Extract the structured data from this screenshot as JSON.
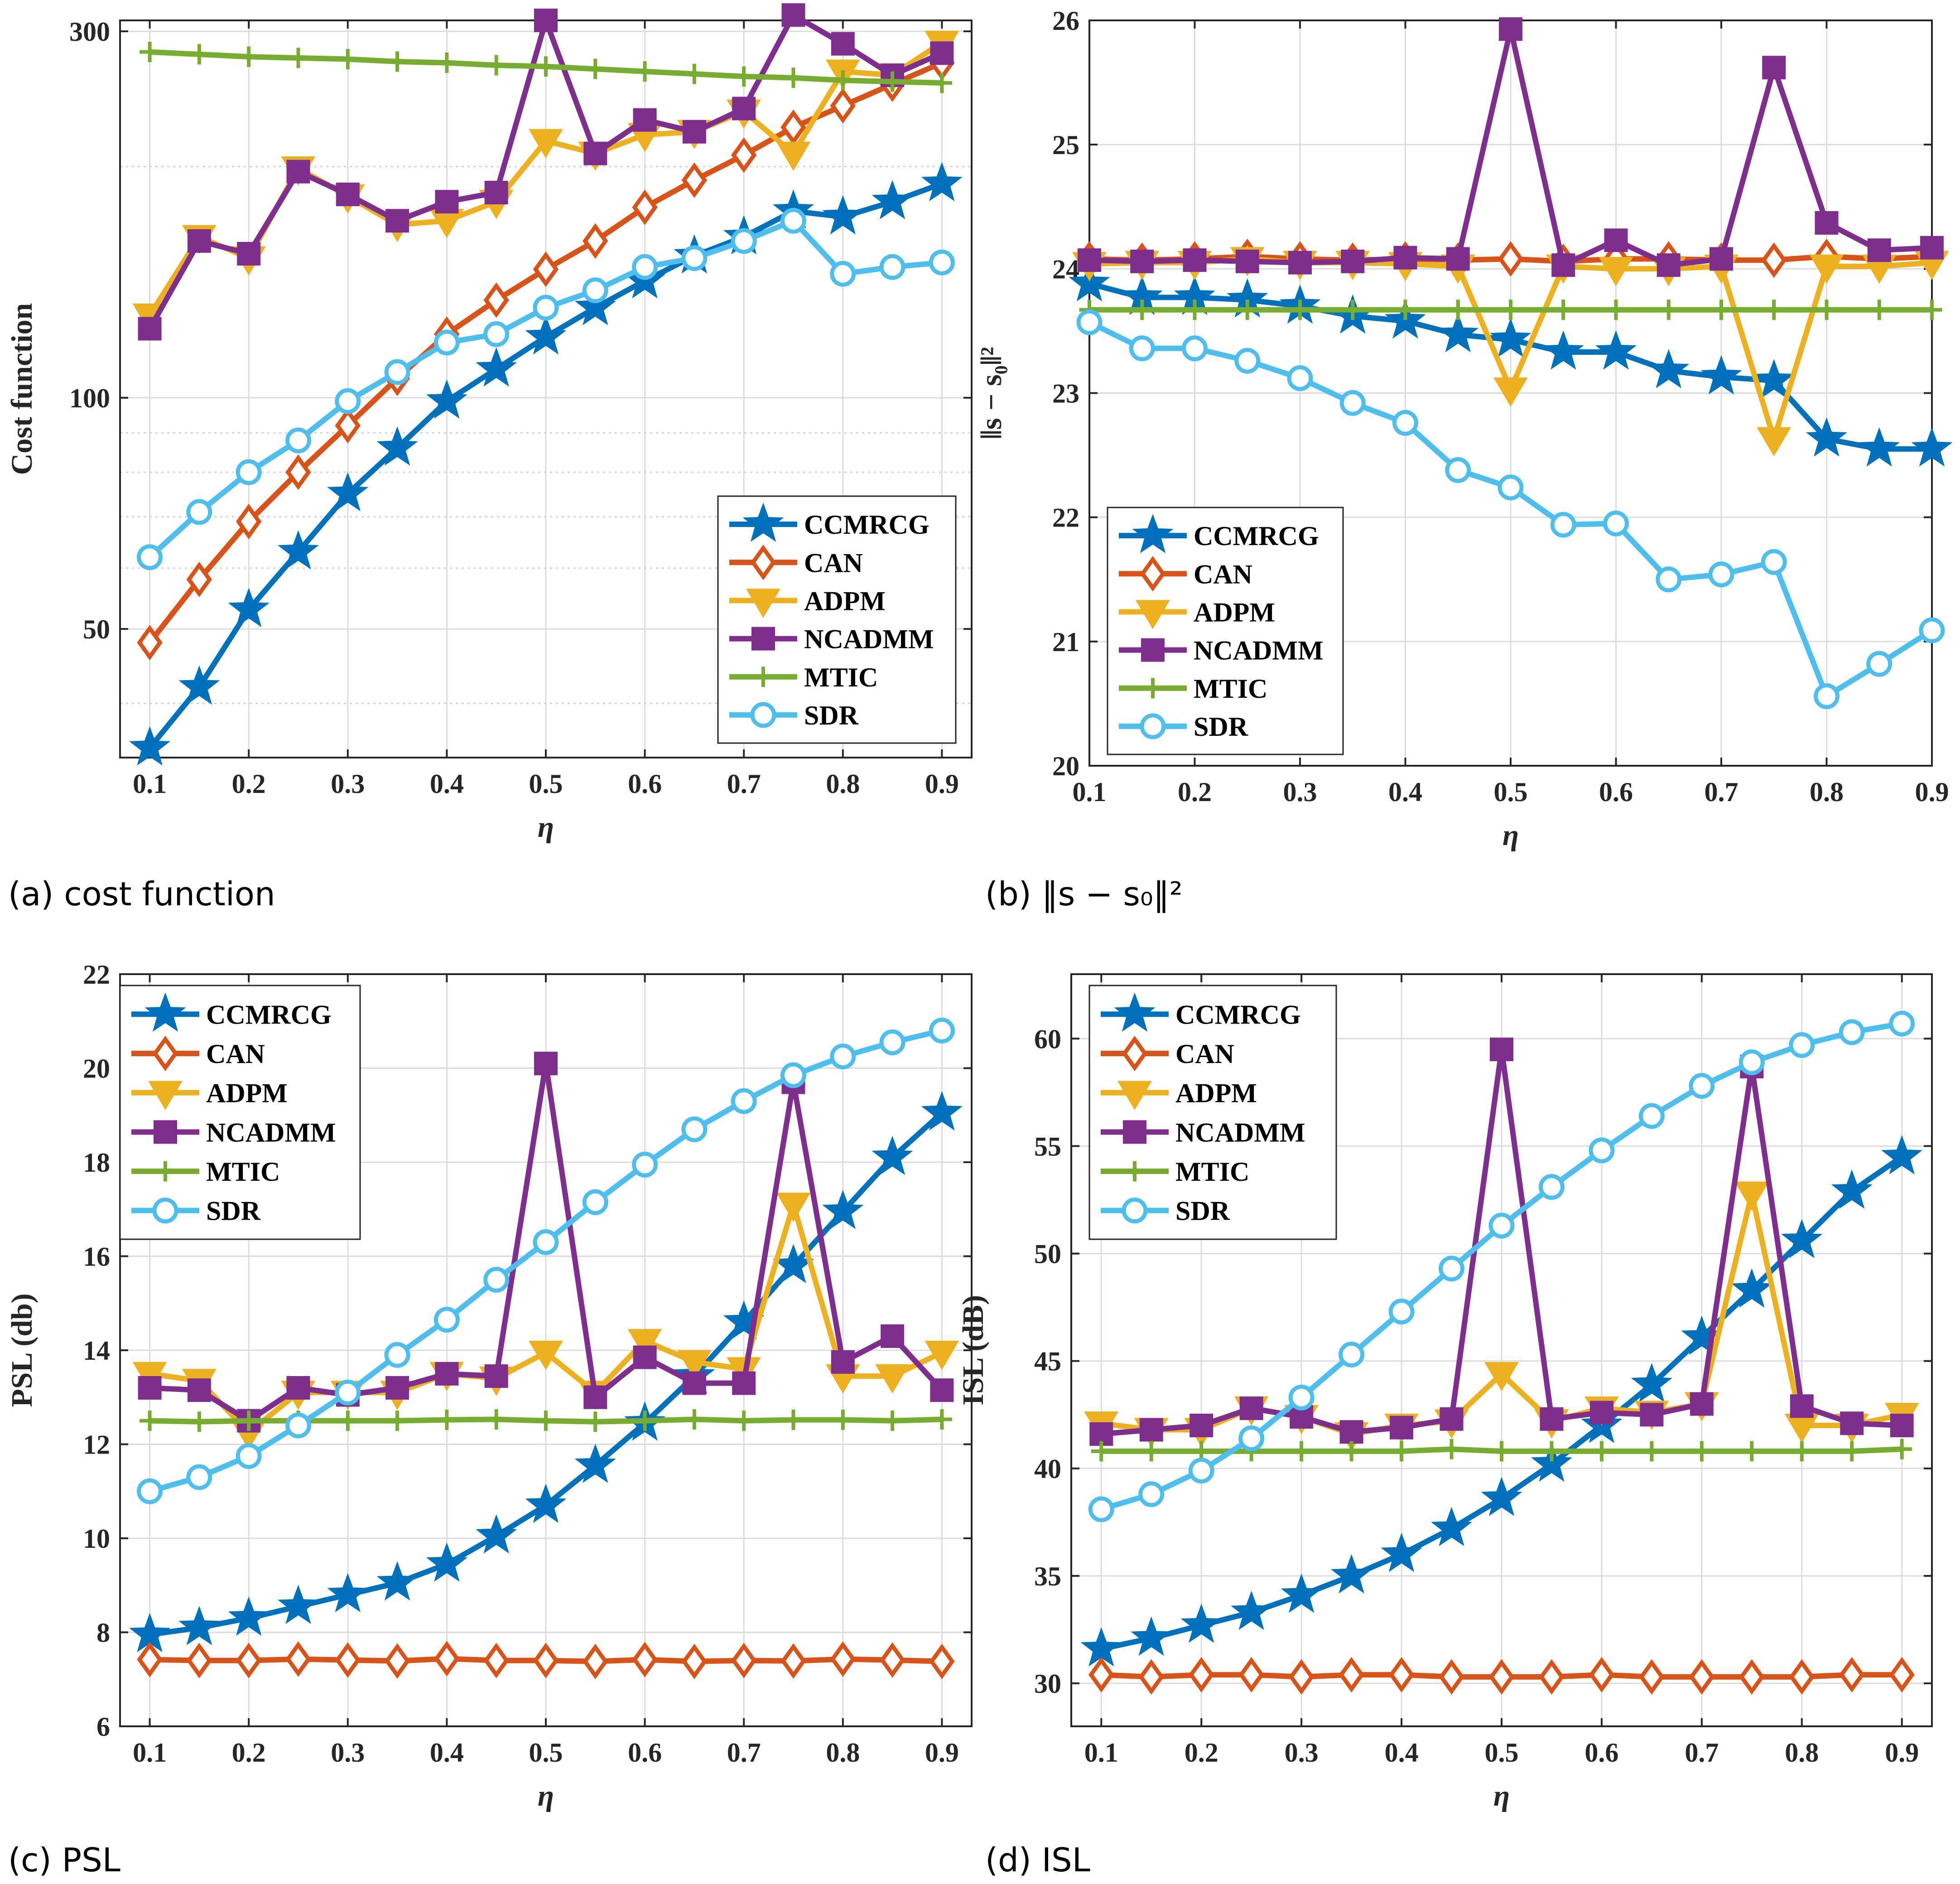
{
  "colors": {
    "CCMRCG": "#0072BD",
    "CAN": "#D95319",
    "ADPM": "#EDB120",
    "NCADMM": "#7E2F8E",
    "MTIC": "#77AC30",
    "SDR": "#4DBEEE"
  },
  "chart_data": [
    {
      "id": "a",
      "type": "line",
      "caption": "(a) cost function",
      "ylabel": "Cost function",
      "xlabel": "η",
      "yscale": "log",
      "xlim": [
        0.07,
        0.93
      ],
      "ylim": [
        34,
        310
      ],
      "xticks": [
        "0.1",
        "0.2",
        "0.3",
        "0.4",
        "0.5",
        "0.6",
        "0.7",
        "0.8",
        "0.9"
      ],
      "yticks": [
        "50",
        "100",
        "300"
      ],
      "legend_position": "bottom-right",
      "x": [
        0.1,
        0.15,
        0.2,
        0.25,
        0.3,
        0.35,
        0.4,
        0.45,
        0.5,
        0.55,
        0.6,
        0.65,
        0.7,
        0.75,
        0.8,
        0.85,
        0.9
      ],
      "series": [
        {
          "name": "CCMRCG",
          "marker": "star",
          "values": [
            35,
            42,
            53,
            63,
            75,
            86,
            99,
            109,
            120,
            131,
            142,
            153,
            162,
            175,
            172,
            180,
            190
          ]
        },
        {
          "name": "CAN",
          "marker": "diamond",
          "values": [
            48,
            58,
            69,
            80,
            92,
            106,
            121,
            134,
            147,
            160,
            177,
            192,
            207,
            225,
            240,
            256,
            273
          ]
        },
        {
          "name": "ADPM",
          "marker": "triangle-down",
          "values": [
            128,
            162,
            152,
            199,
            183,
            168,
            170,
            180,
            216,
            208,
            220,
            222,
            236,
            208,
            266,
            263,
            290
          ]
        },
        {
          "name": "NCADMM",
          "marker": "square",
          "values": [
            123,
            160,
            154,
            197,
            184,
            170,
            180,
            185,
            310,
            208,
            230,
            222,
            238,
            315,
            289,
            263,
            281
          ]
        },
        {
          "name": "MTIC",
          "marker": "plus",
          "values": [
            282,
            280,
            278,
            277,
            276,
            274,
            273,
            271,
            270,
            268,
            266,
            264,
            262,
            261,
            259,
            258,
            257
          ]
        },
        {
          "name": "SDR",
          "marker": "circle",
          "values": [
            62,
            71,
            80,
            88,
            99,
            108,
            118,
            121,
            131,
            138,
            148,
            152,
            160,
            170,
            145,
            148,
            150
          ]
        }
      ]
    },
    {
      "id": "b",
      "type": "line",
      "caption": "(b) ‖s − s₀‖²",
      "ylabel": "‖s − s₀‖²",
      "xlabel": "η",
      "yscale": "linear",
      "xlim": [
        0.1,
        0.9
      ],
      "ylim": [
        20,
        26
      ],
      "xticks": [
        "0.1",
        "0.2",
        "0.3",
        "0.4",
        "0.5",
        "0.6",
        "0.7",
        "0.8",
        "0.9"
      ],
      "yticks": [
        "20",
        "21",
        "22",
        "23",
        "24",
        "25",
        "26"
      ],
      "legend_position": "bottom-left",
      "x": [
        0.1,
        0.15,
        0.2,
        0.25,
        0.3,
        0.35,
        0.4,
        0.45,
        0.5,
        0.55,
        0.6,
        0.65,
        0.7,
        0.75,
        0.8,
        0.85,
        0.9
      ],
      "series": [
        {
          "name": "CCMRCG",
          "marker": "star",
          "values": [
            23.88,
            23.77,
            23.77,
            23.75,
            23.7,
            23.62,
            23.58,
            23.47,
            23.43,
            23.33,
            23.33,
            23.18,
            23.13,
            23.1,
            22.63,
            22.55,
            22.55
          ]
        },
        {
          "name": "CAN",
          "marker": "diamond",
          "values": [
            24.08,
            24.07,
            24.08,
            24.1,
            24.08,
            24.07,
            24.08,
            24.07,
            24.08,
            24.06,
            24.08,
            24.08,
            24.07,
            24.07,
            24.1,
            24.08,
            24.1
          ]
        },
        {
          "name": "ADPM",
          "marker": "triangle-down",
          "values": [
            24.04,
            24.05,
            24.05,
            24.08,
            24.05,
            24.05,
            24.04,
            24.02,
            23.03,
            24.02,
            24.0,
            24.0,
            24.02,
            22.63,
            24.02,
            24.02,
            24.05
          ]
        },
        {
          "name": "NCADMM",
          "marker": "square",
          "values": [
            24.07,
            24.06,
            24.07,
            24.06,
            24.05,
            24.06,
            24.09,
            24.08,
            25.93,
            24.03,
            24.23,
            24.03,
            24.08,
            25.62,
            24.37,
            24.15,
            24.17
          ]
        },
        {
          "name": "MTIC",
          "marker": "plus",
          "values": [
            23.67,
            23.67,
            23.67,
            23.67,
            23.67,
            23.67,
            23.67,
            23.67,
            23.67,
            23.67,
            23.67,
            23.67,
            23.67,
            23.67,
            23.67,
            23.67,
            23.67
          ]
        },
        {
          "name": "SDR",
          "marker": "circle",
          "values": [
            23.57,
            23.36,
            23.36,
            23.26,
            23.12,
            22.92,
            22.76,
            22.38,
            22.24,
            21.94,
            21.95,
            21.5,
            21.54,
            21.64,
            20.56,
            20.82,
            21.09
          ]
        }
      ]
    },
    {
      "id": "c",
      "type": "line",
      "caption": "(c) PSL",
      "ylabel": "PSL (db)",
      "xlabel": "η",
      "yscale": "linear",
      "xlim": [
        0.07,
        0.93
      ],
      "ylim": [
        6,
        22
      ],
      "xticks": [
        "0.1",
        "0.2",
        "0.3",
        "0.4",
        "0.5",
        "0.6",
        "0.7",
        "0.8",
        "0.9"
      ],
      "yticks": [
        "6",
        "8",
        "10",
        "12",
        "14",
        "16",
        "18",
        "20",
        "22"
      ],
      "legend_position": "top-left",
      "x": [
        0.1,
        0.15,
        0.2,
        0.25,
        0.3,
        0.35,
        0.4,
        0.45,
        0.5,
        0.55,
        0.6,
        0.65,
        0.7,
        0.75,
        0.8,
        0.85,
        0.9
      ],
      "series": [
        {
          "name": "CCMRCG",
          "marker": "star",
          "values": [
            7.95,
            8.1,
            8.3,
            8.55,
            8.8,
            9.05,
            9.45,
            10.05,
            10.7,
            11.55,
            12.45,
            13.45,
            14.6,
            15.8,
            16.95,
            18.1,
            19.05
          ]
        },
        {
          "name": "CAN",
          "marker": "diamond",
          "values": [
            7.42,
            7.4,
            7.4,
            7.43,
            7.41,
            7.39,
            7.44,
            7.4,
            7.4,
            7.38,
            7.42,
            7.38,
            7.4,
            7.39,
            7.43,
            7.41,
            7.38
          ]
        },
        {
          "name": "ADPM",
          "marker": "triangle-down",
          "values": [
            13.5,
            13.35,
            12.25,
            13.1,
            13.1,
            13.1,
            13.5,
            13.4,
            13.95,
            13.1,
            14.2,
            13.75,
            13.6,
            17.1,
            13.45,
            13.45,
            13.95
          ]
        },
        {
          "name": "NCADMM",
          "marker": "square",
          "values": [
            13.2,
            13.15,
            12.5,
            13.2,
            13.05,
            13.2,
            13.5,
            13.45,
            20.1,
            13.0,
            13.85,
            13.3,
            13.3,
            19.7,
            13.75,
            14.3,
            13.15
          ]
        },
        {
          "name": "MTIC",
          "marker": "plus",
          "values": [
            12.5,
            12.48,
            12.5,
            12.5,
            12.5,
            12.5,
            12.52,
            12.53,
            12.5,
            12.48,
            12.5,
            12.53,
            12.5,
            12.52,
            12.52,
            12.5,
            12.53
          ]
        },
        {
          "name": "SDR",
          "marker": "circle",
          "values": [
            11.0,
            11.3,
            11.75,
            12.4,
            13.1,
            13.9,
            14.65,
            15.5,
            16.3,
            17.15,
            17.95,
            18.7,
            19.3,
            19.85,
            20.25,
            20.55,
            20.8
          ]
        }
      ]
    },
    {
      "id": "d",
      "type": "line",
      "caption": "(d) ISL",
      "ylabel": "ISL (dB)",
      "xlabel": "η",
      "yscale": "linear",
      "xlim": [
        0.07,
        0.93
      ],
      "ylim": [
        28,
        63
      ],
      "xticks": [
        "0.1",
        "0.2",
        "0.3",
        "0.4",
        "0.5",
        "0.6",
        "0.7",
        "0.8",
        "0.9"
      ],
      "yticks": [
        "30",
        "35",
        "40",
        "45",
        "50",
        "55",
        "60"
      ],
      "legend_position": "top-left",
      "x": [
        0.1,
        0.15,
        0.2,
        0.25,
        0.3,
        0.35,
        0.4,
        0.45,
        0.5,
        0.55,
        0.6,
        0.65,
        0.7,
        0.75,
        0.8,
        0.85,
        0.9
      ],
      "series": [
        {
          "name": "CCMRCG",
          "marker": "star",
          "values": [
            31.6,
            32.1,
            32.7,
            33.3,
            34.1,
            35.0,
            36.0,
            37.2,
            38.6,
            40.2,
            42.0,
            43.9,
            46.1,
            48.3,
            50.6,
            52.9,
            54.5
          ]
        },
        {
          "name": "CAN",
          "marker": "diamond",
          "values": [
            30.4,
            30.3,
            30.4,
            30.4,
            30.3,
            30.4,
            30.4,
            30.3,
            30.3,
            30.3,
            30.4,
            30.3,
            30.3,
            30.3,
            30.3,
            30.4,
            30.4
          ]
        },
        {
          "name": "ADPM",
          "marker": "triangle-down",
          "values": [
            42.1,
            41.8,
            41.8,
            42.8,
            42.4,
            41.6,
            42.0,
            42.2,
            44.4,
            42.2,
            42.8,
            42.6,
            43.0,
            52.8,
            42.0,
            42.0,
            42.5
          ]
        },
        {
          "name": "NCADMM",
          "marker": "square",
          "values": [
            41.6,
            41.8,
            42.0,
            42.8,
            42.4,
            41.7,
            41.9,
            42.3,
            59.5,
            42.3,
            42.6,
            42.5,
            43.0,
            58.7,
            42.9,
            42.1,
            42.0
          ]
        },
        {
          "name": "MTIC",
          "marker": "plus",
          "values": [
            40.8,
            40.8,
            40.8,
            40.8,
            40.8,
            40.8,
            40.8,
            40.9,
            40.8,
            40.8,
            40.8,
            40.8,
            40.8,
            40.8,
            40.8,
            40.8,
            40.9
          ]
        },
        {
          "name": "SDR",
          "marker": "circle",
          "values": [
            38.1,
            38.8,
            39.9,
            41.4,
            43.3,
            45.3,
            47.3,
            49.3,
            51.3,
            53.1,
            54.8,
            56.4,
            57.8,
            58.9,
            59.7,
            60.3,
            60.7
          ]
        }
      ]
    }
  ]
}
